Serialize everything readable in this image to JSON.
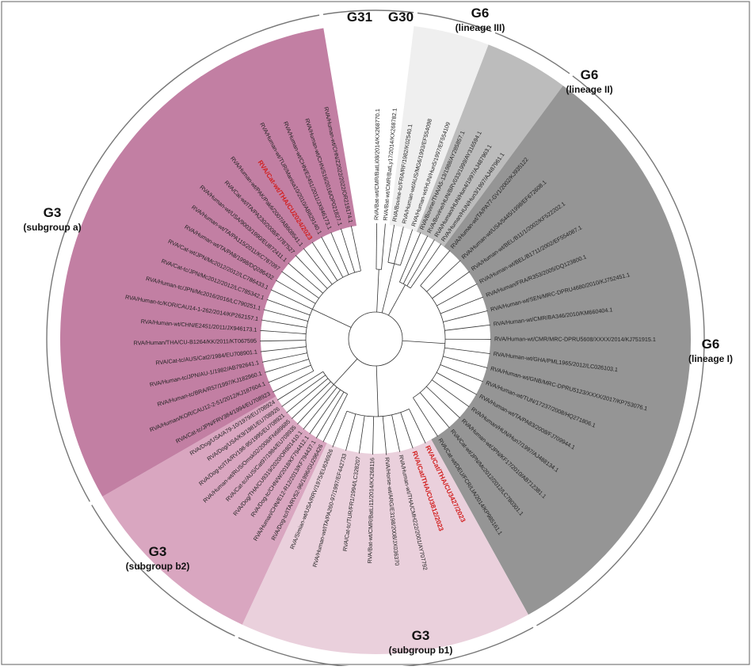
{
  "clades": [
    {
      "id": "g31",
      "name": "G31",
      "sub": "",
      "color": "#ffffff",
      "leaves": []
    },
    {
      "id": "g30",
      "name": "G30",
      "sub": "",
      "color": "#ffffff",
      "leaves": [
        {
          "label": "RVA/Bat-wt/CMR/BatLi08/2014/KX268770.1",
          "hl": false
        },
        {
          "label": "RVA/Bat-wt/CMR/BatLy17/2014/KX268782.1",
          "hl": false
        }
      ]
    },
    {
      "id": "g6-3",
      "name": "G6",
      "sub": "(lineage III)",
      "color": "#efefef",
      "leaves": [
        {
          "label": "RVA/Bovine-tc/FRA/RF/1982/K02540.1",
          "hl": false
        },
        {
          "label": "RVA/Human-wt/AUS/MG6/1993/EF554098",
          "hl": false
        },
        {
          "label": "RVA/Human-wt/HUN/Hun5/1997/EF554109",
          "hl": false
        }
      ]
    },
    {
      "id": "g6-2",
      "name": "G6",
      "sub": "(lineage II)",
      "color": "#bcbcbc",
      "leaves": [
        {
          "label": "RVA/Bovine/THA/A5-13/1988/AY285857.1",
          "hl": false
        },
        {
          "label": "RVA/Bovine/HUN/BRV033/1999/AY316594.1",
          "hl": false
        },
        {
          "label": "RVA/Human/HUN/Hun4/1997/AJ487963.1",
          "hl": false
        },
        {
          "label": "RVA/Human/HUN/Hun3/1997/AJ487961.1",
          "hl": false
        }
      ]
    },
    {
      "id": "g6-1",
      "name": "G6",
      "sub": "(lineage I)",
      "color": "#959595",
      "leaves": [
        {
          "label": "RVA/Human-wt/TA/PA77-GV1/2002/KJ935122",
          "hl": false
        },
        {
          "label": "RVA/Human-wt/USA/5445/1998/EF672608.1",
          "hl": false
        },
        {
          "label": "RVA/Human-wt/BEL/B11/1/2002/KF522202.1",
          "hl": false
        },
        {
          "label": "RVA/Human-wt/BEL/B1711/2002/EF554087.1",
          "hl": false
        },
        {
          "label": "RVA/Human/FRA/R353/2005/DQ123800.1",
          "hl": false
        },
        {
          "label": "RVA/Human-wt/SEN/MRC-DPRU4680/2010/KJ752451.1",
          "hl": false
        },
        {
          "label": "RVA/Human-wt/CMR/BA346/2010/KM660404.1",
          "hl": false
        },
        {
          "label": "RVA/Human-wt/CMR/MRC-DPRU5608/XXXX/2014/KJ751915.1",
          "hl": false
        },
        {
          "label": "RVA/Human-wt/GHA/PML1965/2012/LC026103.1",
          "hl": false
        },
        {
          "label": "RVA/Human-wt/GNB/MRC-DPRU5123/XXXX/2017/KP753076.1",
          "hl": false
        },
        {
          "label": "RVA/Human-wt/TUN/17237/2008/HQ271806.1",
          "hl": false
        },
        {
          "label": "RVA/Human-wt/TA/PA83/2008/FJ709944.1",
          "hl": false
        },
        {
          "label": "RVA/Human/HUN/Hun7/1997/AJ488134.1",
          "hl": false
        },
        {
          "label": "RVA/Human-wt/JPN/KF17/2010/AB712381.1",
          "hl": false
        },
        {
          "label": "RVA/Cat-wt/JPN/Mc2012/2012/LC780301.1",
          "hl": false
        },
        {
          "label": "RVA/Cat-wt/DEU/FCR/LIA/2014/KP985161.1",
          "hl": false
        }
      ]
    },
    {
      "id": "g3-b1",
      "name": "G3",
      "sub": "(subgroup b1)",
      "color": "#ead0dc",
      "leaves": [
        {
          "label": "RVA/Cat/THA/CU3427/2023",
          "hl": true
        },
        {
          "label": "RVA/Cat/THA/CU3812/2023",
          "hl": true
        },
        {
          "label": "RVA/Human-wt/THA/CMH222/2001/AY707792",
          "hl": false
        },
        {
          "label": "RVA/Horse-wt/ARG/E3198/2008/JX036370",
          "hl": false
        },
        {
          "label": "RVA/Bat-wt/CMR/BatLi11/2014/KX268116",
          "hl": false
        },
        {
          "label": "RVA/Cat-tc/TUR/FR1/1994/LC328207",
          "hl": false
        },
        {
          "label": "RVA/Human-wt/ITA/PA260-97/1997/EF442733",
          "hl": false
        },
        {
          "label": "RVA/Simian-wt/USA/RRV/1975/EU636926",
          "hl": false
        }
      ]
    },
    {
      "id": "g3-b2",
      "name": "G3",
      "sub": "(subgroup b2)",
      "color": "#d9a6c0",
      "leaves": [
        {
          "label": "RVA/Dog-tc/ITA/RV52-96/1996/GU296426",
          "hl": false
        },
        {
          "label": "RVA/Human/CHN/E12-R12/2013/KF794437.1",
          "hl": false
        },
        {
          "label": "RVA/Dog-tc/CHN/W/2018/KF794412.1",
          "hl": false
        },
        {
          "label": "RVA/Dog/THA/CU9319/2020/OR801410.1",
          "hl": false
        },
        {
          "label": "RVA/Cat-tc/AUS/Cat97/1984/EU708935",
          "hl": false
        },
        {
          "label": "RVA/Human-wt/RUS/Omsk02/2008/FN689685",
          "hl": false
        },
        {
          "label": "RVA/Dog-tc/ITA/RV198-95/1995/EU708921",
          "hl": false
        },
        {
          "label": "RVA/Dog/USA/K9/1981/EU708926",
          "hl": false
        },
        {
          "label": "RVA/Dog/USA/A79-10/1979/EU708924",
          "hl": false
        }
      ]
    },
    {
      "id": "g3-a",
      "name": "G3",
      "sub": "(subgroup a)",
      "color": "#c27fa3",
      "leaves": [
        {
          "label": "RVA/Cat-tc/JPN/FRV384/1994/EU708923",
          "hl": false
        },
        {
          "label": "RVA/Human/KOR/CAU12-2-51/2012/KJ187604.1",
          "hl": false
        },
        {
          "label": "RVA/Human-tc/BRA/R57/1997/KJ182960.1",
          "hl": false
        },
        {
          "label": "RVA/Human-tc/JPN/AU-1/1982/AB792641.1",
          "hl": false
        },
        {
          "label": "RVA/Cat-tc/AUS/Cat2/1984/EU708901.1",
          "hl": false
        },
        {
          "label": "RVA/Human/THA/CU-B1264/KK/2011/KT067595",
          "hl": false
        },
        {
          "label": "RVA/Human-wt/CHN/E2451/2011/JX946173.1",
          "hl": false
        },
        {
          "label": "RVA/Human-tc/KOR/CAU14-1-262/2014/KP262157.1",
          "hl": false
        },
        {
          "label": "RVA/Human-tc/JPN/Mc2016/2016/LC790251.1",
          "hl": false
        },
        {
          "label": "RVA/Cat-tc/JPN/Mc2012/2012/LC785342.1",
          "hl": false
        },
        {
          "label": "RVA/Cat-wt/JPN/Mc2012/2012/LC786433.1",
          "hl": false
        },
        {
          "label": "RVA/Human-wt/TA/PA8/1998/DQ286432",
          "hl": false
        },
        {
          "label": "RVA/Human-wt/TA/PA115/2011/KC787097",
          "hl": false
        },
        {
          "label": "RVA/Human-wt/USA/9003/1990/EU872411.1",
          "hl": false
        },
        {
          "label": "RVA/Cat-wt/ITA/PA230/2008/FJ787527",
          "hl": false
        },
        {
          "label": "RVA/Human-wt/PAK/Pak6/2007/AB608541.1",
          "hl": false
        },
        {
          "label": "RVA/Cat-wt/THA/CU2024/2023",
          "hl": true
        },
        {
          "label": "RVA/Human-wt/TUR/Manisa10/2010/AB829140.1",
          "hl": false
        },
        {
          "label": "RVA/Human-wt/CHN/E2451/2011/JX946173.1",
          "hl": false
        },
        {
          "label": "RVA/Human-wt/CHN/S16/2016/OP021827.1",
          "hl": false
        },
        {
          "label": "RVA/Human-wt/CHN/Z2022/2022/OR219174.1",
          "hl": false
        }
      ]
    }
  ]
}
